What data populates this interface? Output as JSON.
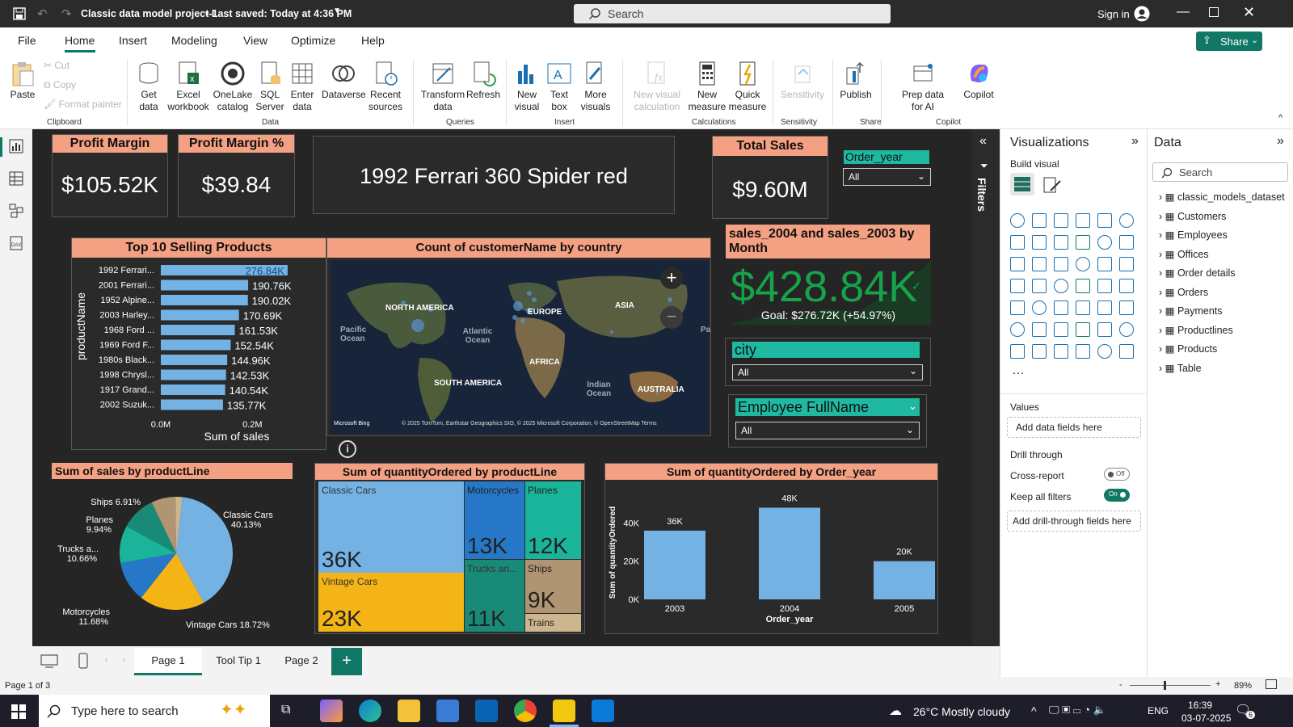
{
  "window": {
    "title": "Classic data model project-1",
    "saved": "• Last saved: Today at 4:36 PM",
    "search_placeholder": "Search",
    "signin": "Sign in"
  },
  "menu": {
    "tabs": [
      "File",
      "Home",
      "Insert",
      "Modeling",
      "View",
      "Optimize",
      "Help"
    ],
    "share": "Share"
  },
  "ribbon": {
    "paste": "Paste",
    "cut": "Cut",
    "copy": "Copy",
    "format_painter": "Format painter",
    "get_data": "Get data",
    "excel": "Excel workbook",
    "onelake": "OneLake catalog",
    "sql": "SQL Server",
    "enter_data": "Enter data",
    "dataverse": "Dataverse",
    "recent": "Recent sources",
    "transform": "Transform data",
    "refresh": "Refresh",
    "new_visual": "New visual",
    "text_box": "Text box",
    "more_visuals": "More visuals",
    "new_visual_calc": "New visual calculation",
    "new_measure": "New measure",
    "quick_measure": "Quick measure",
    "sensitivity": "Sensitivity",
    "publish": "Publish",
    "prep_ai": "Prep data for AI",
    "copilot": "Copilot",
    "groups": [
      "Clipboard",
      "Data",
      "Queries",
      "Insert",
      "Calculations",
      "Sensitivity",
      "Share",
      "Copilot"
    ]
  },
  "report": {
    "profit_margin": {
      "title": "Profit Margin",
      "value": "$105.52K"
    },
    "profit_margin_pct": {
      "title": "Profit Margin %",
      "value": "$39.84"
    },
    "top_product": "1992 Ferrari 360 Spider red",
    "total_sales": {
      "title": "Total Sales",
      "value": "$9.60M"
    },
    "order_year_slicer": {
      "title": "Order_year",
      "value": "All"
    },
    "kpi": {
      "title": "sales_2004 and sales_2003 by Month",
      "value": "$428.84K",
      "goal": "Goal: $276.72K (+54.97%)"
    },
    "city_slicer": {
      "title": "city",
      "value": "All"
    },
    "employee_slicer": {
      "title": "Employee FullName",
      "value": "All"
    },
    "map": {
      "title": "Count of customerName by country",
      "labels": [
        "NORTH AMERICA",
        "EUROPE",
        "ASIA",
        "Pacific Ocean",
        "Atlantic Ocean",
        "AFRICA",
        "SOUTH AMERICA",
        "Indian Ocean",
        "AUSTRALIA",
        "Pa"
      ],
      "attribution": "© 2025 TomTom, Earthstar Geographics SIO, © 2025 Microsoft Corporation, © OpenStreetMap Terms",
      "bing": "Microsoft Bing"
    },
    "page_tabs": [
      "Page 1",
      "Tool Tip 1",
      "Page 2"
    ]
  },
  "chart_data": [
    {
      "type": "bar",
      "orientation": "horizontal",
      "title": "Top 10 Selling Products",
      "ylabel": "productName",
      "xlabel": "Sum of sales",
      "x_ticks": [
        "0.0M",
        "0.2M"
      ],
      "categories": [
        "1992 Ferrari...",
        "2001 Ferrari...",
        "1952 Alpine...",
        "2003 Harley...",
        "1968 Ford ...",
        "1969 Ford F...",
        "1980s Black...",
        "1998 Chrysl...",
        "1917 Grand...",
        "2002 Suzuk..."
      ],
      "values": [
        276.84,
        190.76,
        190.02,
        170.69,
        161.53,
        152.54,
        144.96,
        142.53,
        140.54,
        135.77
      ],
      "labels": [
        "276.84K",
        "190.76K",
        "190.02K",
        "170.69K",
        "161.53K",
        "152.54K",
        "144.96K",
        "142.53K",
        "140.54K",
        "135.77K"
      ],
      "xlim": [
        0,
        300
      ]
    },
    {
      "type": "pie",
      "title": "Sum of sales by productLine",
      "categories": [
        "Classic Cars",
        "Vintage Cars",
        "Motorcycles",
        "Trucks a...",
        "Planes",
        "Ships",
        "Trains"
      ],
      "values": [
        40.13,
        18.72,
        11.68,
        10.66,
        9.94,
        6.91,
        1.96
      ],
      "labels": [
        "Classic Cars 40.13%",
        "Vintage Cars 18.72%",
        "Motorcycles 11.68%",
        "Trucks a... 10.66%",
        "Planes 9.94%",
        "Ships 6.91%",
        ""
      ]
    },
    {
      "type": "heatmap",
      "subtype": "treemap",
      "title": "Sum of quantityOrdered by productLine",
      "categories": [
        "Classic Cars",
        "Vintage Cars",
        "Motorcycles",
        "Trucks an...",
        "Planes",
        "Ships",
        "Trains"
      ],
      "labels": [
        "36K",
        "23K",
        "13K",
        "11K",
        "12K",
        "9K",
        ""
      ]
    },
    {
      "type": "bar",
      "title": "Sum of quantityOrdered by Order_year",
      "xlabel": "Order_year",
      "ylabel": "Sum of quantityOrdered",
      "categories": [
        "2003",
        "2004",
        "2005"
      ],
      "values": [
        36,
        48,
        20
      ],
      "labels": [
        "36K",
        "48K",
        "20K"
      ],
      "y_ticks": [
        "0K",
        "20K",
        "40K"
      ],
      "ylim": [
        0,
        55
      ]
    }
  ],
  "viz_pane": {
    "title": "Visualizations",
    "build": "Build visual",
    "values": "Values",
    "add_fields": "Add data fields here",
    "drill": "Drill through",
    "cross": "Cross-report",
    "cross_state": "Off",
    "keep": "Keep all filters",
    "keep_state": "On",
    "add_drill": "Add drill-through fields here",
    "filters": "Filters"
  },
  "data_pane": {
    "title": "Data",
    "search": "Search",
    "tables": [
      "classic_models_dataset",
      "Customers",
      "Employees",
      "Offices",
      "Order details",
      "Orders",
      "Payments",
      "Productlines",
      "Products",
      "Table"
    ]
  },
  "status": {
    "page": "Page 1 of 3",
    "zoom": "89%"
  },
  "taskbar": {
    "search": "Type here to search",
    "weather": "26°C  Mostly cloudy",
    "lang": "ENG",
    "time": "16:39",
    "date": "03-07-2025",
    "notif": "6"
  }
}
